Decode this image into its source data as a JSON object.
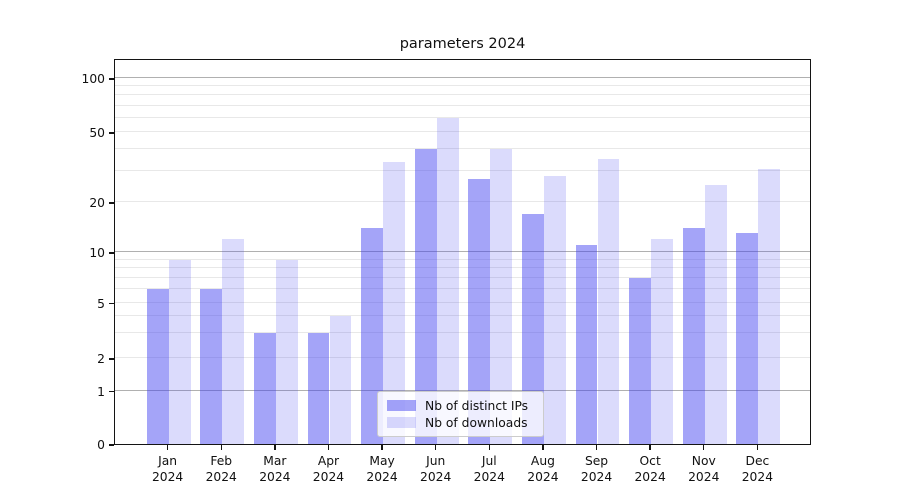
{
  "chart_data": {
    "type": "bar",
    "title": "parameters 2024",
    "categories": [
      "Jan 2024",
      "Feb 2024",
      "Mar 2024",
      "Apr 2024",
      "May 2024",
      "Jun 2024",
      "Jul 2024",
      "Aug 2024",
      "Sep 2024",
      "Oct 2024",
      "Nov 2024",
      "Dec 2024"
    ],
    "series": [
      {
        "name": "Nb of distinct IPs",
        "color": "rgba(62,62,240,0.47)",
        "values": [
          6,
          6,
          3,
          3,
          14,
          40,
          27,
          17,
          11,
          7,
          14,
          13
        ]
      },
      {
        "name": "Nb of downloads",
        "color": "rgba(62,62,240,0.19)",
        "values": [
          9,
          12,
          9,
          4,
          34,
          60,
          40,
          28,
          35,
          12,
          25,
          31
        ]
      }
    ],
    "xlabel": "",
    "ylabel": "",
    "yscale": "log above 1, linear between 0 and 1",
    "ylim": [
      0,
      130
    ],
    "yticks": [
      0,
      1,
      2,
      5,
      10,
      20,
      50,
      100
    ],
    "major_gridlines": [
      1,
      10,
      100
    ],
    "minor_gridlines": [
      2,
      3,
      4,
      5,
      6,
      7,
      8,
      9,
      20,
      30,
      40,
      50,
      60,
      70,
      80,
      90
    ],
    "grid": true,
    "legend_position": "lower center"
  },
  "colors": {
    "bar_distinct_ips": "rgba(62,62,240,0.47)",
    "bar_downloads": "rgba(62,62,240,0.19)",
    "major_grid": "#b0b0b0",
    "minor_grid": "#e8e8e8",
    "axis": "#141414",
    "text": "#111111",
    "legend_border": "#cccccc"
  }
}
